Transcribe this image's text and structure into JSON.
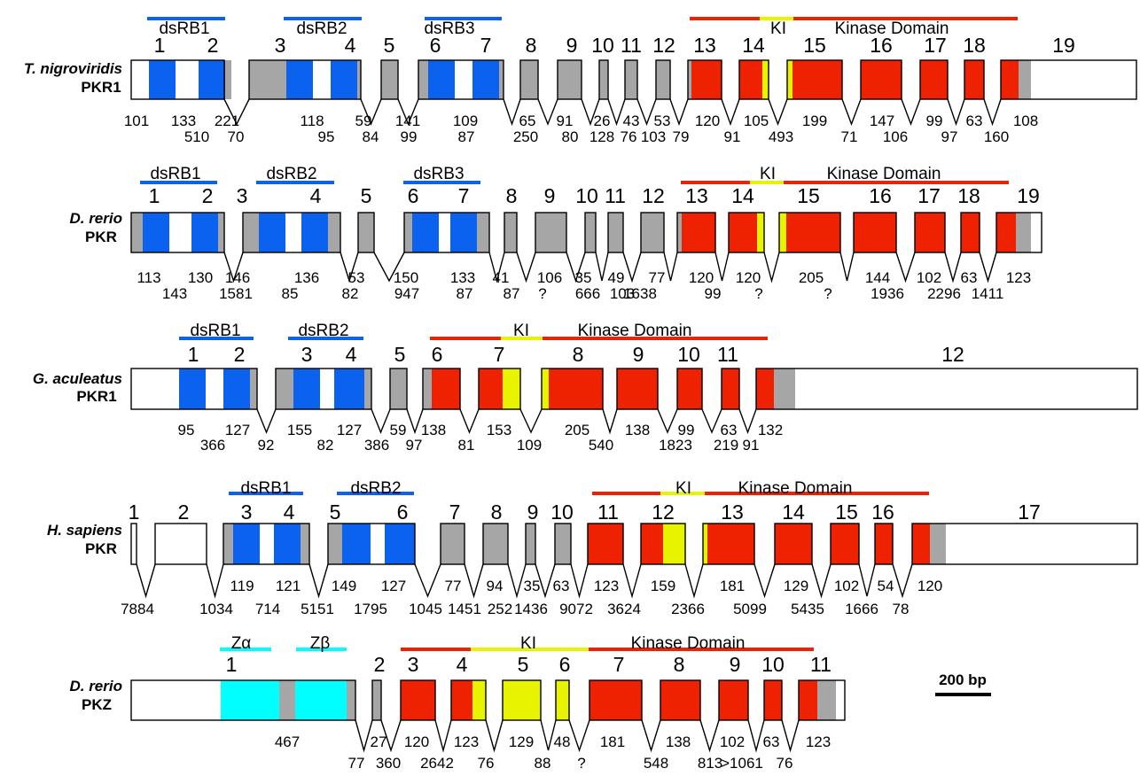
{
  "colors": {
    "dsrbd": "#0a62ee",
    "zdomain": "#00ffff",
    "kinase": "#ee2200",
    "ki_insert": "#e8f300",
    "intron_exon": "#a6a6a6",
    "utr": "#ffffff",
    "outline": "#000000"
  },
  "scale_label": "200 bp",
  "rows": [
    {
      "species": "T. nigroviridis",
      "gene": "PKR1",
      "exon_numbers": [
        "1",
        "2",
        "3",
        "4",
        "5",
        "6",
        "7",
        "8",
        "9",
        "10",
        "11",
        "12",
        "13",
        "14",
        "15",
        "16",
        "17",
        "18",
        "19"
      ],
      "domain_labels": [
        "dsRB1",
        "dsRB2",
        "dsRB3",
        "KI",
        "Kinase Domain"
      ],
      "exon_lengths": [
        "101",
        "133",
        "221",
        "118",
        "59",
        "141",
        "109",
        "65",
        "91",
        "26",
        "43",
        "53",
        "120",
        "105",
        "199",
        "147",
        "99",
        "63",
        "108"
      ],
      "intron_lengths": [
        "510",
        "70",
        "95",
        "84",
        "99",
        "87",
        "250",
        "80",
        "128",
        "76",
        "103",
        "79",
        "91",
        "493",
        "71",
        "106",
        "97",
        "160"
      ]
    },
    {
      "species": "D. rerio",
      "gene": "PKR",
      "exon_numbers": [
        "1",
        "2",
        "3",
        "4",
        "5",
        "6",
        "7",
        "8",
        "9",
        "10",
        "11",
        "12",
        "13",
        "14",
        "15",
        "16",
        "17",
        "18",
        "19"
      ],
      "domain_labels": [
        "dsRB1",
        "dsRB2",
        "dsRB3",
        "KI",
        "Kinase Domain"
      ],
      "exon_lengths": [
        "113",
        "130",
        "146",
        "136",
        "53",
        "150",
        "133",
        "41",
        "106",
        "35",
        "49",
        "77",
        "120",
        "120",
        "205",
        "144",
        "102",
        "63",
        "123"
      ],
      "intron_lengths": [
        "143",
        "1581",
        "85",
        "82",
        "947",
        "87",
        "87",
        "?",
        "666",
        "103",
        "1638",
        "99",
        "?",
        "?",
        "1936",
        "2296",
        "1411",
        "?"
      ]
    },
    {
      "species": "G. aculeatus",
      "gene": "PKR1",
      "exon_numbers": [
        "1",
        "2",
        "3",
        "4",
        "5",
        "6",
        "7",
        "8",
        "9",
        "10",
        "11",
        "12"
      ],
      "domain_labels": [
        "dsRB1",
        "dsRB2",
        "KI",
        "Kinase Domain"
      ],
      "exon_lengths": [
        "95",
        "127",
        "155",
        "127",
        "59",
        "138",
        "153",
        "205",
        "138",
        "99",
        "63",
        "132"
      ],
      "intron_lengths": [
        "366",
        "92",
        "82",
        "386",
        "97",
        "81",
        "109",
        "540",
        "1823",
        "219",
        "91"
      ]
    },
    {
      "species": "H. sapiens",
      "gene": "PKR",
      "exon_numbers": [
        "1",
        "2",
        "3",
        "4",
        "5",
        "6",
        "7",
        "8",
        "9",
        "10",
        "11",
        "12",
        "13",
        "14",
        "15",
        "16",
        "17"
      ],
      "domain_labels": [
        "dsRB1",
        "dsRB2",
        "KI",
        "Kinase Domain"
      ],
      "exon_lengths": [
        "119",
        "121",
        "149",
        "127",
        "77",
        "94",
        "35",
        "63",
        "123",
        "159",
        "181",
        "129",
        "102",
        "54",
        "120"
      ],
      "intron_lengths": [
        "7884",
        "1034",
        "714",
        "5151",
        "1795",
        "1045",
        "1451",
        "252",
        "1436",
        "9072",
        "3624",
        "2366",
        "5099",
        "5435",
        "1666",
        "78"
      ]
    },
    {
      "species": "D. rerio",
      "gene": "PKZ",
      "exon_numbers": [
        "1",
        "2",
        "3",
        "4",
        "5",
        "6",
        "7",
        "8",
        "9",
        "10",
        "11"
      ],
      "domain_labels": [
        "Zα",
        "Zβ",
        "KI",
        "Kinase Domain"
      ],
      "exon_lengths": [
        "467",
        "27",
        "120",
        "123",
        "129",
        "48",
        "181",
        "138",
        "102",
        "63",
        "123"
      ],
      "intron_lengths": [
        "77",
        "360",
        "2642",
        "76",
        "88",
        "?",
        "548",
        "813",
        ">1061",
        "76"
      ]
    }
  ]
}
